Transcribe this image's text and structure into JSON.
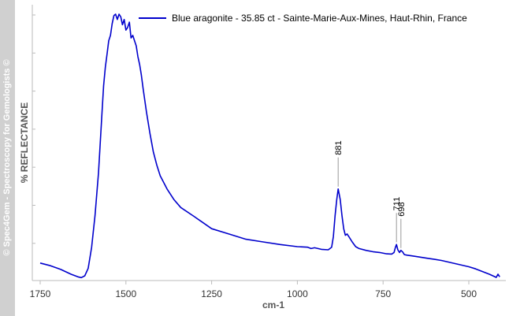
{
  "watermark": "© Spec4Gem - Spectroscopy for Gemologists ©",
  "colors": {
    "series": "#0000cc",
    "axis": "#bbbbbb",
    "annotation_line": "#999999",
    "sidebar": "#d0d0d0"
  },
  "chart_data": {
    "type": "line",
    "title": "",
    "xlabel": "cm-1",
    "ylabel": "%  REFLECTANCE",
    "x_reversed": true,
    "xlim": [
      1750,
      410
    ],
    "ylim": [
      0,
      100
    ],
    "grid": false,
    "legend_position": "top-right",
    "xticks": [
      "1750",
      "1500",
      "1250",
      "1000",
      "750",
      "500"
    ],
    "series": [
      {
        "name": "Blue aragonite - 35.85 ct - Sainte-Marie-Aux-Mines, Haut-Rhin, France",
        "color": "#0000cc",
        "x": [
          1750,
          1720,
          1690,
          1660,
          1640,
          1630,
          1620,
          1610,
          1600,
          1590,
          1580,
          1570,
          1565,
          1560,
          1555,
          1550,
          1545,
          1540,
          1535,
          1530,
          1525,
          1520,
          1515,
          1510,
          1505,
          1500,
          1495,
          1490,
          1485,
          1480,
          1475,
          1470,
          1465,
          1460,
          1455,
          1450,
          1440,
          1430,
          1420,
          1410,
          1400,
          1380,
          1360,
          1340,
          1300,
          1250,
          1200,
          1150,
          1100,
          1050,
          1000,
          970,
          960,
          950,
          930,
          910,
          900,
          895,
          890,
          885,
          881,
          875,
          870,
          865,
          860,
          855,
          850,
          840,
          830,
          820,
          800,
          780,
          760,
          740,
          725,
          718,
          714,
          711,
          707,
          702,
          698,
          693,
          688,
          680,
          660,
          640,
          620,
          600,
          580,
          560,
          540,
          520,
          500,
          480,
          460,
          440,
          430,
          420,
          415,
          410
        ],
        "values": [
          6.0,
          5.0,
          3.6,
          1.8,
          0.8,
          0.5,
          1.2,
          4.0,
          12.0,
          24.0,
          40.0,
          62.0,
          73.0,
          80.0,
          85.0,
          90.0,
          92.0,
          96.5,
          99.5,
          100.0,
          98.0,
          100.0,
          99.0,
          96.0,
          98.0,
          94.0,
          95.0,
          97.0,
          91.0,
          92.0,
          90.0,
          88.0,
          84.0,
          81.0,
          77.0,
          72.0,
          63.0,
          55.0,
          48.0,
          43.0,
          39.0,
          34.0,
          30.0,
          27.0,
          23.5,
          19.0,
          17.0,
          15.0,
          14.0,
          13.0,
          12.2,
          12.0,
          11.5,
          11.8,
          11.2,
          11.0,
          12.0,
          16.0,
          24.0,
          30.0,
          34.0,
          30.0,
          24.0,
          19.0,
          16.5,
          17.0,
          16.0,
          14.0,
          12.2,
          11.5,
          10.8,
          10.3,
          10.0,
          9.5,
          9.4,
          10.0,
          12.0,
          13.0,
          11.0,
          10.0,
          10.8,
          10.2,
          9.2,
          9.0,
          8.6,
          8.2,
          7.8,
          7.4,
          7.0,
          6.4,
          5.8,
          5.2,
          4.6,
          3.8,
          2.8,
          1.8,
          1.2,
          0.6,
          1.8,
          0.8
        ]
      }
    ],
    "annotations": [
      {
        "label": "881",
        "x": 881,
        "y": 34.0
      },
      {
        "label": "711",
        "x": 711,
        "y": 13.0
      },
      {
        "label": "698",
        "x": 698,
        "y": 10.8
      }
    ]
  }
}
